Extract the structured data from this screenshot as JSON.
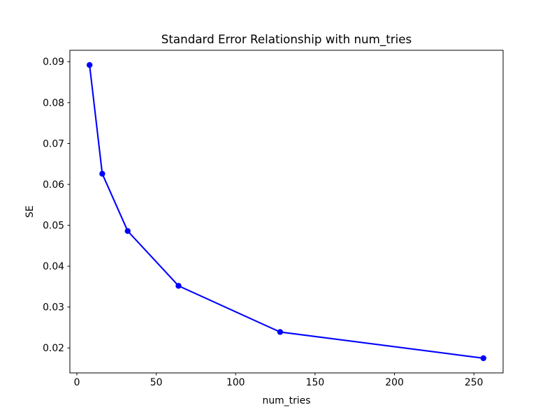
{
  "figure": {
    "background_color": "#ffffff",
    "plot_background_color": "#ffffff",
    "spine_color": "#000000",
    "text_color": "#000000"
  },
  "chart_data": {
    "type": "line",
    "title": "Standard Error Relationship with num_tries",
    "xlabel": "num_tries",
    "ylabel": "SE",
    "x": [
      8,
      16,
      32,
      64,
      128,
      256
    ],
    "y": [
      0.0892,
      0.0626,
      0.0486,
      0.0352,
      0.0239,
      0.0175
    ],
    "line_color": "#0000ff",
    "marker": "circle",
    "marker_color": "#0000ff",
    "marker_radius": 4.2,
    "line_width": 2.1,
    "xlim": [
      -4.4,
      268.4
    ],
    "ylim": [
      0.0139,
      0.0928
    ],
    "xticks": [
      0,
      50,
      100,
      150,
      200,
      250
    ],
    "xtick_labels": [
      "0",
      "50",
      "100",
      "150",
      "200",
      "250"
    ],
    "yticks": [
      0.02,
      0.03,
      0.04,
      0.05,
      0.06,
      0.07,
      0.08,
      0.09
    ],
    "ytick_labels": [
      "0.02",
      "0.03",
      "0.04",
      "0.05",
      "0.06",
      "0.07",
      "0.08",
      "0.09"
    ],
    "grid": false,
    "legend": null
  }
}
